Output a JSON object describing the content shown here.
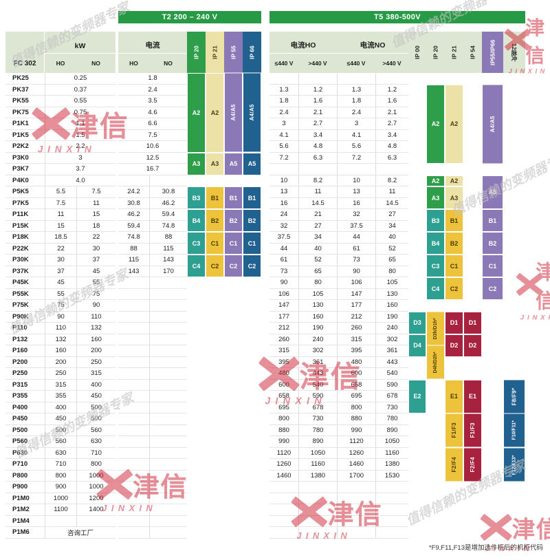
{
  "watermark": {
    "brand_cn": "津信",
    "brand_en": "JINXIN",
    "slogan": "值得信赖的变频器专家"
  },
  "header": {
    "t2_title": "T2 200 – 240 V",
    "t5_title": "T5 380-500V",
    "model_label": "FC 302",
    "kw_label": "kW",
    "ho": "HO",
    "no": "NO",
    "t2_current_label": "电流",
    "t5_current_ho_label": "电流HO",
    "t5_current_no_label": "电流NO",
    "le440": "≤440 V",
    "gt440": ">440 V",
    "t2_ip": [
      "IP 20",
      "IP 21",
      "IP 55",
      "IP 66"
    ],
    "t5_ip": [
      "IP 00",
      "IP 20",
      "IP 21",
      "IP 54",
      "IP55/IP66",
      "12脉冲"
    ]
  },
  "footnote": "*F9,F11,F13是增加选件柜后的机柜代码",
  "colors": {
    "bar_green": "#269a44",
    "header_bg": "#dce6d2",
    "green": "#2e9e4b",
    "cream": "#ece2a7",
    "gold": "#edc33c",
    "purple": "#8a79b6",
    "navy": "#20618f",
    "teal": "#2da092",
    "maroon": "#a7223e",
    "brand_red": "#ce2233"
  },
  "rows": [
    {
      "model": "PK25",
      "kw": [
        "0.25"
      ],
      "t2": [
        "1.8"
      ],
      "t5": []
    },
    {
      "model": "PK37",
      "kw": [
        "0.37"
      ],
      "t2": [
        "2.4"
      ],
      "t5": [
        "1.3",
        "1.2",
        "1.3",
        "1.2"
      ]
    },
    {
      "model": "PK55",
      "kw": [
        "0.55"
      ],
      "t2": [
        "3.5"
      ],
      "t5": [
        "1.8",
        "1.6",
        "1.8",
        "1.6"
      ]
    },
    {
      "model": "PK75",
      "kw": [
        "0.75"
      ],
      "t2": [
        "4.6"
      ],
      "t5": [
        "2.4",
        "2.1",
        "2.4",
        "2.1"
      ]
    },
    {
      "model": "P1K1",
      "kw": [
        "1.1"
      ],
      "t2": [
        "6.6"
      ],
      "t5": [
        "3",
        "2.7",
        "3",
        "2.7"
      ]
    },
    {
      "model": "P1K5",
      "kw": [
        "1.5"
      ],
      "t2": [
        "7.5"
      ],
      "t5": [
        "4.1",
        "3.4",
        "4.1",
        "3.4"
      ]
    },
    {
      "model": "P2K2",
      "kw": [
        "2.2"
      ],
      "t2": [
        "10.6"
      ],
      "t5": [
        "5.6",
        "4.8",
        "5.6",
        "4.8"
      ]
    },
    {
      "model": "P3K0",
      "kw": [
        "3"
      ],
      "t2": [
        "12.5"
      ],
      "t5": [
        "7.2",
        "6.3",
        "7.2",
        "6.3"
      ]
    },
    {
      "model": "P3K7",
      "kw": [
        "3.7"
      ],
      "t2": [
        "16.7"
      ],
      "t5": []
    },
    {
      "model": "P4K0",
      "kw": [
        "4.0"
      ],
      "t2": [],
      "t5": [
        "10",
        "8.2",
        "10",
        "8.2"
      ]
    },
    {
      "model": "P5K5",
      "kw": [
        "5.5",
        "7.5"
      ],
      "t2": [
        "24.2",
        "30.8"
      ],
      "t5": [
        "13",
        "11",
        "13",
        "11"
      ]
    },
    {
      "model": "P7K5",
      "kw": [
        "7.5",
        "11"
      ],
      "t2": [
        "30.8",
        "46.2"
      ],
      "t5": [
        "16",
        "14.5",
        "16",
        "14.5"
      ]
    },
    {
      "model": "P11K",
      "kw": [
        "11",
        "15"
      ],
      "t2": [
        "46.2",
        "59.4"
      ],
      "t5": [
        "24",
        "21",
        "32",
        "27"
      ]
    },
    {
      "model": "P15K",
      "kw": [
        "15",
        "18"
      ],
      "t2": [
        "59.4",
        "74.8"
      ],
      "t5": [
        "32",
        "27",
        "37.5",
        "34"
      ]
    },
    {
      "model": "P18K",
      "kw": [
        "18.5",
        "22"
      ],
      "t2": [
        "74.8",
        "88"
      ],
      "t5": [
        "37.5",
        "34",
        "44",
        "40"
      ]
    },
    {
      "model": "P22K",
      "kw": [
        "22",
        "30"
      ],
      "t2": [
        "88",
        "115"
      ],
      "t5": [
        "44",
        "40",
        "61",
        "52"
      ]
    },
    {
      "model": "P30K",
      "kw": [
        "30",
        "37"
      ],
      "t2": [
        "115",
        "143"
      ],
      "t5": [
        "61",
        "52",
        "73",
        "65"
      ]
    },
    {
      "model": "P37K",
      "kw": [
        "37",
        "45"
      ],
      "t2": [
        "143",
        "170"
      ],
      "t5": [
        "73",
        "65",
        "90",
        "80"
      ]
    },
    {
      "model": "P45K",
      "kw": [
        "45",
        "55"
      ],
      "t2": [],
      "t5": [
        "90",
        "80",
        "106",
        "105"
      ]
    },
    {
      "model": "P55K",
      "kw": [
        "55",
        "75"
      ],
      "t2": [],
      "t5": [
        "106",
        "105",
        "147",
        "130"
      ]
    },
    {
      "model": "P75K",
      "kw": [
        "75",
        "90"
      ],
      "t2": [],
      "t5": [
        "147",
        "130",
        "177",
        "160"
      ]
    },
    {
      "model": "P90K",
      "kw": [
        "90",
        "110"
      ],
      "t2": [],
      "t5": [
        "177",
        "160",
        "212",
        "190"
      ]
    },
    {
      "model": "P110",
      "kw": [
        "110",
        "132"
      ],
      "t2": [],
      "t5": [
        "212",
        "190",
        "260",
        "240"
      ]
    },
    {
      "model": "P132",
      "kw": [
        "132",
        "160"
      ],
      "t2": [],
      "t5": [
        "260",
        "240",
        "315",
        "302"
      ]
    },
    {
      "model": "P160",
      "kw": [
        "160",
        "200"
      ],
      "t2": [],
      "t5": [
        "315",
        "302",
        "395",
        "361"
      ]
    },
    {
      "model": "P200",
      "kw": [
        "200",
        "250"
      ],
      "t2": [],
      "t5": [
        "395",
        "361",
        "480",
        "443"
      ]
    },
    {
      "model": "P250",
      "kw": [
        "250",
        "315"
      ],
      "t2": [],
      "t5": [
        "480",
        "443",
        "600",
        "540"
      ]
    },
    {
      "model": "P315",
      "kw": [
        "315",
        "400"
      ],
      "t2": [],
      "t5": [
        "600",
        "540",
        "658",
        "590"
      ]
    },
    {
      "model": "P355",
      "kw": [
        "355",
        "450"
      ],
      "t2": [],
      "t5": [
        "658",
        "590",
        "695",
        "678"
      ]
    },
    {
      "model": "P400",
      "kw": [
        "400",
        "500"
      ],
      "t2": [],
      "t5": [
        "695",
        "678",
        "800",
        "730"
      ]
    },
    {
      "model": "P450",
      "kw": [
        "450",
        "500"
      ],
      "t2": [],
      "t5": [
        "800",
        "730",
        "880",
        "780"
      ]
    },
    {
      "model": "P500",
      "kw": [
        "500",
        "560"
      ],
      "t2": [],
      "t5": [
        "880",
        "780",
        "990",
        "890"
      ]
    },
    {
      "model": "P560",
      "kw": [
        "560",
        "630"
      ],
      "t2": [],
      "t5": [
        "990",
        "890",
        "1120",
        "1050"
      ]
    },
    {
      "model": "P630",
      "kw": [
        "630",
        "710"
      ],
      "t2": [],
      "t5": [
        "1120",
        "1050",
        "1260",
        "1160"
      ]
    },
    {
      "model": "P710",
      "kw": [
        "710",
        "800"
      ],
      "t2": [],
      "t5": [
        "1260",
        "1160",
        "1460",
        "1380"
      ]
    },
    {
      "model": "P800",
      "kw": [
        "800",
        "1000"
      ],
      "t2": [],
      "t5": [
        "1460",
        "1380",
        "1700",
        "1530"
      ]
    },
    {
      "model": "P900",
      "kw": [
        "900",
        "1000"
      ],
      "t2": [],
      "t5": []
    },
    {
      "model": "P1M0",
      "kw": [
        "1000",
        "1200"
      ],
      "t2": [],
      "t5": []
    },
    {
      "model": "P1M2",
      "kw": [
        "1100",
        "1400"
      ],
      "t2": [],
      "t5": []
    },
    {
      "model": "P1M4",
      "kw": [],
      "t2": [],
      "t5": []
    },
    {
      "model": "P1M6",
      "kw": [
        "咨询工厂"
      ],
      "t2": [],
      "t5": []
    }
  ],
  "blocks": [
    {
      "c": "t2_ip20",
      "f": 0,
      "t": 6,
      "l": "A2",
      "k": "green"
    },
    {
      "c": "t2_ip20",
      "f": 7,
      "t": 8,
      "l": "A3",
      "k": "green"
    },
    {
      "c": "t2_ip20",
      "f": 10,
      "t": 11,
      "l": "B3",
      "k": "teal"
    },
    {
      "c": "t2_ip20",
      "f": 12,
      "t": 13,
      "l": "B4",
      "k": "teal"
    },
    {
      "c": "t2_ip20",
      "f": 14,
      "t": 15,
      "l": "C3",
      "k": "teal"
    },
    {
      "c": "t2_ip20",
      "f": 16,
      "t": 17,
      "l": "C4",
      "k": "teal"
    },
    {
      "c": "t2_ip21",
      "f": 0,
      "t": 6,
      "l": "A2",
      "k": "cream"
    },
    {
      "c": "t2_ip21",
      "f": 7,
      "t": 8,
      "l": "A3",
      "k": "cream"
    },
    {
      "c": "t2_ip21",
      "f": 10,
      "t": 11,
      "l": "B1",
      "k": "gold"
    },
    {
      "c": "t2_ip21",
      "f": 12,
      "t": 13,
      "l": "B2",
      "k": "gold"
    },
    {
      "c": "t2_ip21",
      "f": 14,
      "t": 15,
      "l": "C1",
      "k": "gold"
    },
    {
      "c": "t2_ip21",
      "f": 16,
      "t": 17,
      "l": "C2",
      "k": "gold"
    },
    {
      "c": "t2_ip55",
      "f": 0,
      "t": 6,
      "l": "A4/A5",
      "k": "purple",
      "r": true
    },
    {
      "c": "t2_ip55",
      "f": 7,
      "t": 8,
      "l": "A5",
      "k": "purple"
    },
    {
      "c": "t2_ip55",
      "f": 10,
      "t": 11,
      "l": "B1",
      "k": "purple"
    },
    {
      "c": "t2_ip55",
      "f": 12,
      "t": 13,
      "l": "B2",
      "k": "purple"
    },
    {
      "c": "t2_ip55",
      "f": 14,
      "t": 15,
      "l": "C1",
      "k": "purple"
    },
    {
      "c": "t2_ip55",
      "f": 16,
      "t": 17,
      "l": "C2",
      "k": "purple"
    },
    {
      "c": "t2_ip66",
      "f": 0,
      "t": 6,
      "l": "A4/A5",
      "k": "navy",
      "r": true
    },
    {
      "c": "t2_ip66",
      "f": 7,
      "t": 8,
      "l": "A5",
      "k": "navy"
    },
    {
      "c": "t2_ip66",
      "f": 10,
      "t": 11,
      "l": "B1",
      "k": "navy"
    },
    {
      "c": "t2_ip66",
      "f": 12,
      "t": 13,
      "l": "B2",
      "k": "navy"
    },
    {
      "c": "t2_ip66",
      "f": 14,
      "t": 15,
      "l": "C1",
      "k": "navy"
    },
    {
      "c": "t2_ip66",
      "f": 16,
      "t": 17,
      "l": "C2",
      "k": "navy"
    },
    {
      "c": "t5_ip20",
      "f": 1,
      "t": 7,
      "l": "A2",
      "k": "green"
    },
    {
      "c": "t5_ip21",
      "f": 1,
      "t": 7,
      "l": "A2",
      "k": "cream"
    },
    {
      "c": "t5_ip5566",
      "f": 1,
      "t": 7,
      "l": "A4/A5",
      "k": "purple",
      "r": true
    },
    {
      "c": "t5_ip20",
      "f": 9,
      "t": 9,
      "l": "A2",
      "k": "green"
    },
    {
      "c": "t5_ip21",
      "f": 9,
      "t": 9,
      "l": "A2",
      "k": "cream"
    },
    {
      "c": "t5_ip20",
      "f": 10,
      "t": 11,
      "l": "A3",
      "k": "green"
    },
    {
      "c": "t5_ip21",
      "f": 10,
      "t": 11,
      "l": "A3",
      "k": "cream"
    },
    {
      "c": "t5_ip5566",
      "f": 9,
      "t": 11,
      "l": "A5",
      "k": "purple"
    },
    {
      "c": "t5_ip20",
      "f": 12,
      "t": 13,
      "l": "B3",
      "k": "teal"
    },
    {
      "c": "t5_ip21",
      "f": 12,
      "t": 13,
      "l": "B1",
      "k": "gold"
    },
    {
      "c": "t5_ip5566",
      "f": 12,
      "t": 13,
      "l": "B1",
      "k": "purple"
    },
    {
      "c": "t5_ip20",
      "f": 14,
      "t": 15,
      "l": "B4",
      "k": "teal"
    },
    {
      "c": "t5_ip21",
      "f": 14,
      "t": 15,
      "l": "B2",
      "k": "gold"
    },
    {
      "c": "t5_ip5566",
      "f": 14,
      "t": 15,
      "l": "B2",
      "k": "purple"
    },
    {
      "c": "t5_ip20",
      "f": 16,
      "t": 17,
      "l": "C3",
      "k": "teal"
    },
    {
      "c": "t5_ip21",
      "f": 16,
      "t": 17,
      "l": "C1",
      "k": "gold"
    },
    {
      "c": "t5_ip5566",
      "f": 16,
      "t": 17,
      "l": "C1",
      "k": "purple"
    },
    {
      "c": "t5_ip20",
      "f": 18,
      "t": 19,
      "l": "C4",
      "k": "teal"
    },
    {
      "c": "t5_ip21",
      "f": 18,
      "t": 19,
      "l": "C2",
      "k": "gold"
    },
    {
      "c": "t5_ip5566",
      "f": 18,
      "t": 19,
      "l": "C2",
      "k": "purple"
    },
    {
      "c": "t5_ip00",
      "f": 21,
      "t": 22,
      "l": "D3",
      "k": "teal"
    },
    {
      "c": "t5_ip20",
      "f": 21,
      "t": 23,
      "l": "D3h/D1h*",
      "k": "gold",
      "r": true
    },
    {
      "c": "t5_ip21",
      "f": 21,
      "t": 22,
      "l": "D1",
      "k": "maroon"
    },
    {
      "c": "t5_ip54",
      "f": 21,
      "t": 22,
      "l": "D1",
      "k": "maroon"
    },
    {
      "c": "t5_ip00",
      "f": 23,
      "t": 24,
      "l": "D4",
      "k": "teal"
    },
    {
      "c": "t5_ip20",
      "f": 24,
      "t": 26,
      "l": "D4h/D2h*",
      "k": "gold",
      "r": true
    },
    {
      "c": "t5_ip21",
      "f": 23,
      "t": 24,
      "l": "D2",
      "k": "maroon"
    },
    {
      "c": "t5_ip54",
      "f": 23,
      "t": 24,
      "l": "D2",
      "k": "maroon"
    },
    {
      "c": "t5_ip00",
      "f": 27,
      "t": 29,
      "l": "E2",
      "k": "teal"
    },
    {
      "c": "t5_ip21",
      "f": 27,
      "t": 29,
      "l": "E1",
      "k": "gold"
    },
    {
      "c": "t5_ip54",
      "f": 27,
      "t": 29,
      "l": "E1",
      "k": "maroon"
    },
    {
      "c": "t5_ip21",
      "f": 30,
      "t": 32,
      "l": "F1/F3",
      "k": "gold",
      "r": true
    },
    {
      "c": "t5_ip54",
      "f": 30,
      "t": 32,
      "l": "F1/F3",
      "k": "maroon",
      "r": true
    },
    {
      "c": "t5_ip21",
      "f": 33,
      "t": 35,
      "l": "F2/F4",
      "k": "gold",
      "r": true
    },
    {
      "c": "t5_ip54",
      "f": 33,
      "t": 35,
      "l": "F2/F4",
      "k": "maroon",
      "r": true
    },
    {
      "c": "t5_p12",
      "f": 27,
      "t": 29,
      "l": "F8/F9*",
      "k": "navy",
      "r": true
    },
    {
      "c": "t5_p12",
      "f": 30,
      "t": 32,
      "l": "F10/F11*",
      "k": "navy",
      "r": true
    },
    {
      "c": "t5_p12",
      "f": 33,
      "t": 35,
      "l": "F12/F13*",
      "k": "navy",
      "r": true
    }
  ]
}
